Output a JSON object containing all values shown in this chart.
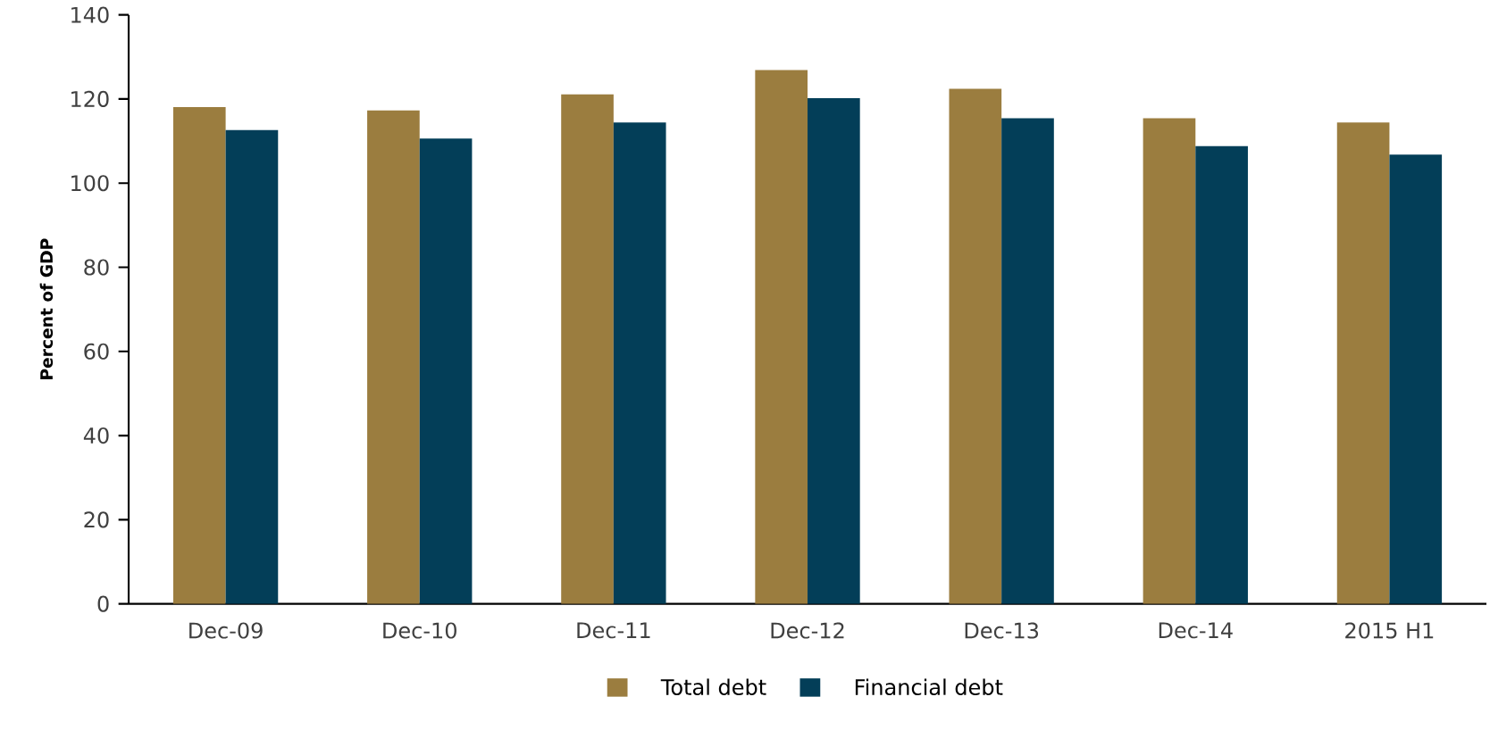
{
  "chart_data": {
    "type": "bar",
    "ylabel": "Percent of GDP",
    "categories": [
      "Dec-09",
      "Dec-10",
      "Dec-11",
      "Dec-12",
      "Dec-13",
      "Dec-14",
      "2015 H1"
    ],
    "series": [
      {
        "name": "Total debt",
        "color": "#9b7d3f",
        "values": [
          118.1,
          117.3,
          121.1,
          126.9,
          122.4,
          115.4,
          114.4
        ]
      },
      {
        "name": "Financial debt",
        "color": "#033e58",
        "values": [
          112.6,
          110.6,
          114.4,
          120.2,
          115.4,
          108.8,
          106.8
        ]
      }
    ],
    "ylim": [
      0,
      140
    ],
    "yticks": [
      0,
      20,
      40,
      60,
      80,
      100,
      120,
      140
    ],
    "grid": false,
    "legend": "bottom"
  }
}
